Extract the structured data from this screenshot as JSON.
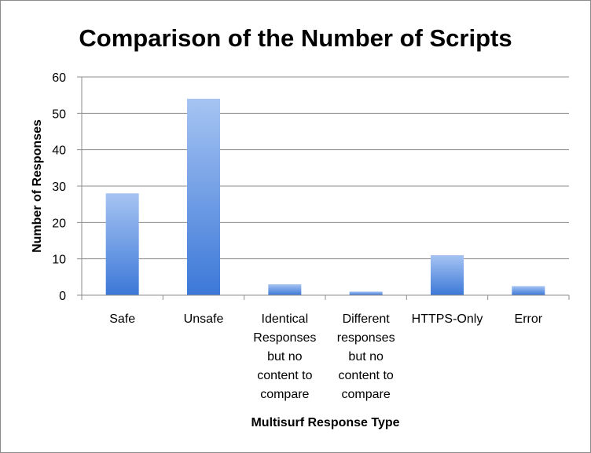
{
  "chart_data": {
    "type": "bar",
    "title": "Comparison of the Number of Scripts",
    "xlabel": "Multisurf Response Type",
    "ylabel": "Number of Responses",
    "categories": [
      [
        "Safe"
      ],
      [
        "Unsafe"
      ],
      [
        "Identical",
        "Responses",
        "but no",
        "content to",
        "compare"
      ],
      [
        "Different",
        "responses",
        "but no",
        "content to",
        "compare"
      ],
      [
        "HTTPS-Only"
      ],
      [
        "Error"
      ]
    ],
    "values": [
      28,
      54,
      3,
      1,
      11,
      2.5
    ],
    "ylim": [
      0,
      60
    ],
    "yticks": [
      "0",
      "10",
      "20",
      "30",
      "40",
      "50",
      "60"
    ],
    "ytick_values": [
      0,
      10,
      20,
      30,
      40,
      50,
      60
    ],
    "grid": true,
    "legend": "none",
    "colors": {
      "bar_top": "#a6c4f2",
      "bar_bottom": "#3c78d8",
      "gridline": "#8c8c8c",
      "frame": "#8c8c8c"
    }
  }
}
